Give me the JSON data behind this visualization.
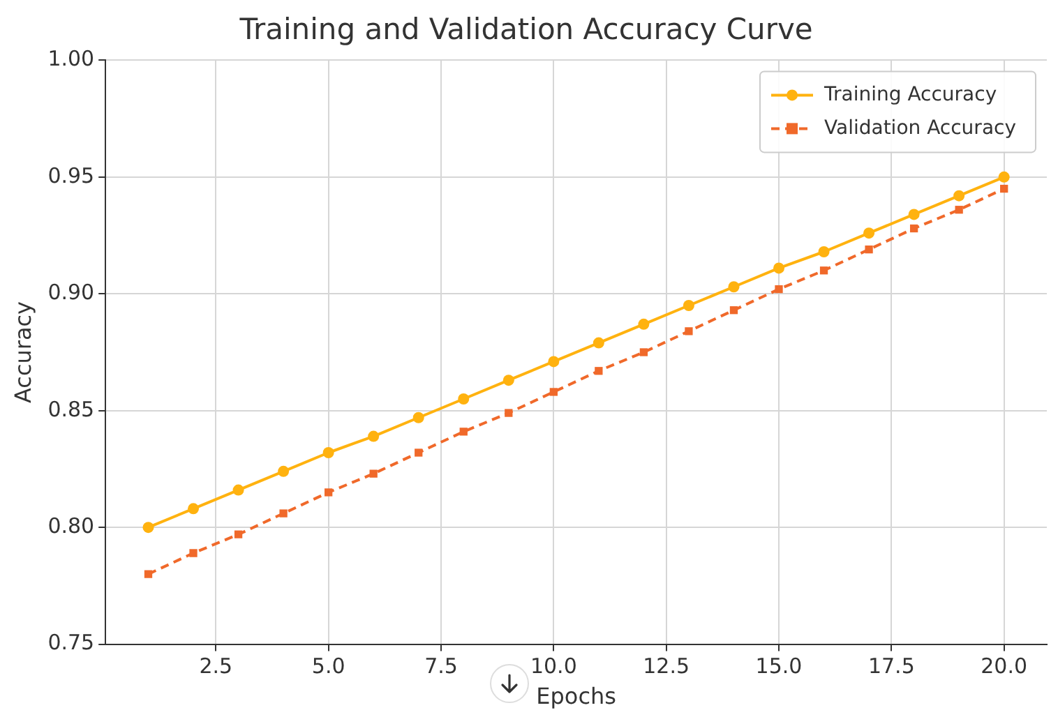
{
  "chart_data": {
    "type": "line",
    "title": "Training and Validation Accuracy Curve",
    "xlabel": "Epochs",
    "ylabel": "Accuracy",
    "x": [
      1,
      2,
      3,
      4,
      5,
      6,
      7,
      8,
      9,
      10,
      11,
      12,
      13,
      14,
      15,
      16,
      17,
      18,
      19,
      20
    ],
    "series": [
      {
        "name": "Training Accuracy",
        "color": "#ffb20f",
        "marker": "circle",
        "line_style": "solid",
        "values": [
          0.8,
          0.808,
          0.816,
          0.824,
          0.832,
          0.839,
          0.847,
          0.855,
          0.863,
          0.871,
          0.879,
          0.887,
          0.895,
          0.903,
          0.911,
          0.918,
          0.926,
          0.934,
          0.942,
          0.95
        ]
      },
      {
        "name": "Validation Accuracy",
        "color": "#f0692a",
        "marker": "square",
        "line_style": "dashed",
        "values": [
          0.78,
          0.789,
          0.797,
          0.806,
          0.815,
          0.823,
          0.832,
          0.841,
          0.849,
          0.858,
          0.867,
          0.875,
          0.884,
          0.893,
          0.902,
          0.91,
          0.919,
          0.928,
          0.936,
          0.945
        ]
      }
    ],
    "xlim": [
      0.05,
      20.95
    ],
    "xticks": [
      2.5,
      {
        "value": 5,
        "label": "5.0"
      },
      7.5,
      {
        "value": 10,
        "label": "10.0"
      },
      12.5,
      {
        "value": 15,
        "label": "15.0"
      },
      17.5,
      {
        "value": 20,
        "label": "20.0"
      }
    ],
    "ylim": [
      0.75,
      1.0
    ],
    "yticks": [
      0.75,
      {
        "value": 0.8,
        "label": "0.80"
      },
      0.85,
      {
        "value": 0.9,
        "label": "0.90"
      },
      0.95,
      {
        "value": 1.0,
        "label": "1.00"
      }
    ],
    "grid": true,
    "legend": "top right"
  }
}
